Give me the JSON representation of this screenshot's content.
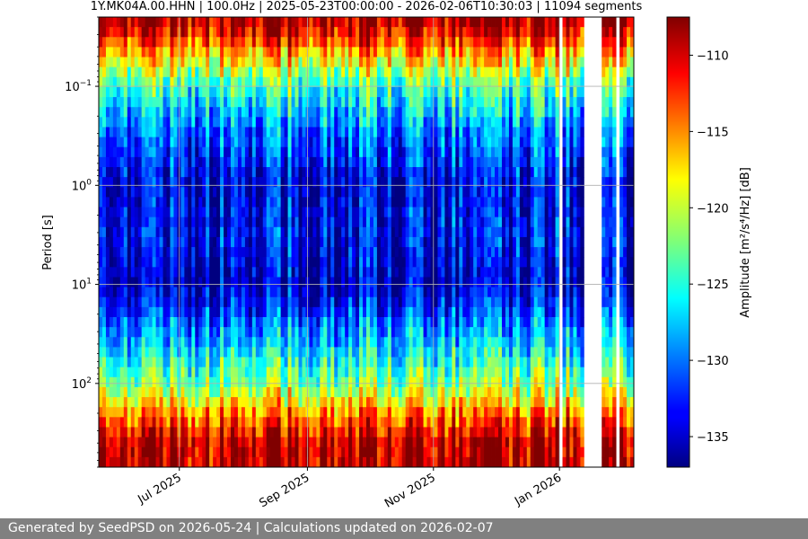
{
  "chart_data": {
    "type": "heatmap",
    "title": "1Y.MK04A.00.HHN | 100.0Hz | 2025-05-23T00:00:00 - 2026-02-06T10:30:03 | 11094 segments",
    "xlabel": "",
    "ylabel": "Period [s]",
    "x_range": [
      "2025-05-23",
      "2026-02-06"
    ],
    "x_ticks": [
      {
        "date": "2025-07-01",
        "label": "Jul 2025"
      },
      {
        "date": "2025-09-01",
        "label": "Sep 2025"
      },
      {
        "date": "2025-11-01",
        "label": "Nov 2025"
      },
      {
        "date": "2026-01-01",
        "label": "Jan 2026"
      }
    ],
    "y_scale": "log",
    "y_range": [
      0.02,
      700
    ],
    "y_ticks": [
      {
        "value": 0.1,
        "base": "10",
        "exp": "−1"
      },
      {
        "value": 1,
        "base": "10",
        "exp": "0"
      },
      {
        "value": 10,
        "base": "10",
        "exp": "1"
      },
      {
        "value": 100,
        "base": "10",
        "exp": "2"
      }
    ],
    "grid": true,
    "colormap": "jet",
    "colorbar": {
      "label": "Amplitude [m²/s⁴/Hz] [dB]",
      "range": [
        -137,
        -107.5
      ],
      "ticks": [
        -110,
        -115,
        -120,
        -125,
        -130,
        -135
      ]
    },
    "data_gaps": [
      [
        "2026-01-01",
        "2026-01-03"
      ],
      [
        "2026-01-04",
        "2026-01-05"
      ],
      [
        "2026-01-12",
        "2026-01-19"
      ],
      [
        "2026-01-20",
        "2026-01-21"
      ],
      [
        "2026-01-23",
        "2026-01-24"
      ],
      [
        "2026-01-26",
        "2026-01-27"
      ],
      [
        "2026-01-29",
        "2026-01-30"
      ]
    ],
    "amplitude_profile_by_period": [
      {
        "period": 0.02,
        "db": -108
      },
      {
        "period": 0.03,
        "db": -111
      },
      {
        "period": 0.05,
        "db": -117
      },
      {
        "period": 0.1,
        "db": -124
      },
      {
        "period": 0.3,
        "db": -130
      },
      {
        "period": 1,
        "db": -134
      },
      {
        "period": 3,
        "db": -133
      },
      {
        "period": 10,
        "db": -135
      },
      {
        "period": 30,
        "db": -129
      },
      {
        "period": 100,
        "db": -122
      },
      {
        "period": 200,
        "db": -115
      },
      {
        "period": 400,
        "db": -109
      }
    ]
  },
  "footer": {
    "text": "Generated by SeedPSD on 2026-05-24 | Calculations updated on 2026-02-07"
  }
}
